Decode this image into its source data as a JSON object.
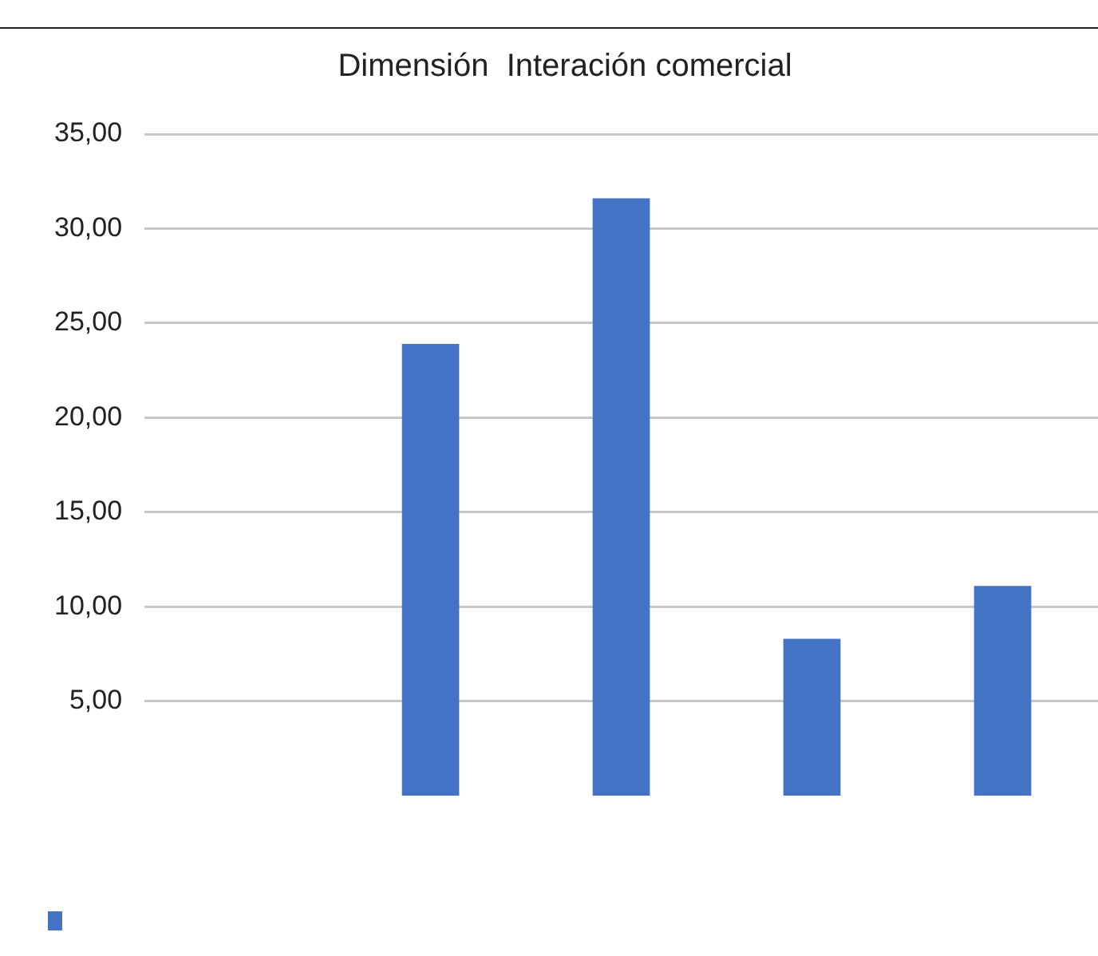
{
  "chart_data": {
    "type": "bar",
    "title": "Dimensión  Interación comercial",
    "categories": [
      null,
      null,
      null,
      null,
      null
    ],
    "series": [
      {
        "color": "#4472c4",
        "values": [
          null,
          23.9,
          31.6,
          8.3,
          11.1
        ]
      }
    ],
    "ylim": [
      0,
      35
    ],
    "yticks": [
      {
        "value": 5,
        "label": "5,00"
      },
      {
        "value": 10,
        "label": "10,00"
      },
      {
        "value": 15,
        "label": "15,00"
      },
      {
        "value": 20,
        "label": "20,00"
      },
      {
        "value": 25,
        "label": "25,00"
      },
      {
        "value": 30,
        "label": "30,00"
      },
      {
        "value": 35,
        "label": "35,00"
      }
    ],
    "grid": "y"
  }
}
